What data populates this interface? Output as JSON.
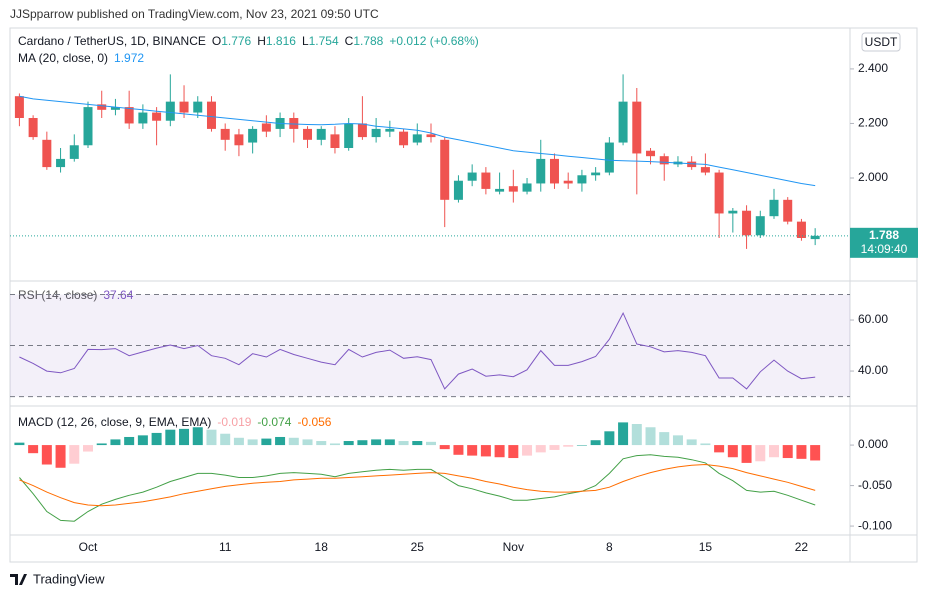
{
  "page": {
    "publisher": "JJSpparrow published on TradingView.com, Nov 23, 2021 09:50 UTC",
    "brand": "TradingView"
  },
  "chart_data": [
    {
      "type": "candlestick",
      "title": "Cardano / TetherUS, 1D, BINANCE",
      "ohlc_labels": [
        "O",
        "H",
        "L",
        "C"
      ],
      "change": "+0.012 (+0.68%)",
      "currency": "USDT",
      "countdown": "14:09:40",
      "categories": [
        null,
        null,
        null,
        null,
        null,
        "Oct",
        null,
        null,
        null,
        null,
        null,
        null,
        null,
        null,
        null,
        "11",
        null,
        null,
        null,
        null,
        null,
        null,
        "18",
        null,
        null,
        null,
        null,
        null,
        null,
        "25",
        null,
        null,
        null,
        null,
        null,
        null,
        "Nov",
        null,
        null,
        null,
        null,
        null,
        null,
        "8",
        null,
        null,
        null,
        null,
        null,
        null,
        "15",
        null,
        null,
        null,
        null,
        null,
        null,
        "22",
        null
      ],
      "open": [
        2.3,
        2.22,
        2.14,
        2.04,
        2.07,
        2.12,
        2.27,
        2.25,
        2.26,
        2.2,
        2.24,
        2.21,
        2.28,
        2.24,
        2.28,
        2.18,
        2.16,
        2.13,
        2.2,
        2.18,
        2.22,
        2.18,
        2.14,
        2.16,
        2.11,
        2.2,
        2.15,
        2.17,
        2.17,
        2.13,
        2.16,
        2.14,
        1.92,
        1.99,
        2.02,
        1.95,
        1.97,
        1.95,
        1.98,
        2.07,
        1.99,
        1.98,
        2.01,
        2.02,
        2.13,
        2.28,
        2.1,
        2.08,
        2.05,
        2.06,
        2.04,
        2.02,
        1.87,
        1.88,
        1.79,
        1.86,
        1.92,
        1.84,
        1.776
      ],
      "high": [
        2.31,
        2.23,
        2.17,
        2.11,
        2.16,
        2.28,
        2.32,
        2.29,
        2.32,
        2.27,
        2.26,
        2.38,
        2.34,
        2.3,
        2.3,
        2.2,
        2.18,
        2.19,
        2.23,
        2.24,
        2.24,
        2.19,
        2.19,
        2.19,
        2.22,
        2.3,
        2.22,
        2.21,
        2.18,
        2.2,
        2.2,
        2.15,
        2.01,
        2.05,
        2.04,
        2.02,
        2.03,
        2.0,
        2.14,
        2.09,
        2.02,
        2.03,
        2.04,
        2.15,
        2.38,
        2.33,
        2.11,
        2.09,
        2.08,
        2.08,
        2.09,
        2.03,
        1.89,
        1.9,
        1.88,
        1.96,
        1.93,
        1.85,
        1.816
      ],
      "low": [
        2.19,
        2.14,
        2.03,
        2.02,
        2.06,
        2.11,
        2.22,
        2.23,
        2.18,
        2.18,
        2.12,
        2.19,
        2.22,
        2.22,
        2.17,
        2.1,
        2.08,
        2.09,
        2.15,
        2.15,
        2.13,
        2.11,
        2.12,
        2.09,
        2.1,
        2.14,
        2.13,
        2.15,
        2.11,
        2.12,
        2.13,
        1.82,
        1.91,
        1.97,
        1.94,
        1.94,
        1.91,
        1.94,
        1.95,
        1.96,
        1.96,
        1.95,
        1.99,
        2.01,
        2.12,
        1.94,
        2.05,
        1.99,
        2.04,
        2.03,
        2.01,
        1.78,
        1.8,
        1.74,
        1.78,
        1.85,
        1.83,
        1.77,
        1.754
      ],
      "close": [
        2.22,
        2.15,
        2.04,
        2.07,
        2.12,
        2.26,
        2.25,
        2.26,
        2.2,
        2.24,
        2.21,
        2.28,
        2.24,
        2.28,
        2.18,
        2.14,
        2.12,
        2.18,
        2.17,
        2.22,
        2.18,
        2.14,
        2.18,
        2.11,
        2.2,
        2.15,
        2.18,
        2.18,
        2.12,
        2.16,
        2.15,
        1.92,
        1.99,
        2.02,
        1.96,
        1.96,
        1.95,
        1.98,
        2.07,
        1.98,
        1.98,
        2.01,
        2.02,
        2.13,
        2.28,
        2.09,
        2.08,
        2.05,
        2.06,
        2.04,
        2.02,
        1.87,
        1.88,
        1.79,
        1.86,
        1.92,
        1.84,
        1.78,
        1.788
      ],
      "up_color": "#26a69a",
      "down_color": "#ef5350",
      "ylim": [
        1.626,
        2.55
      ],
      "yticks": [
        {
          "value": 2.4,
          "label": "2.400"
        },
        {
          "value": 2.2,
          "label": "2.200"
        },
        {
          "value": 2.0,
          "label": "2.000"
        }
      ],
      "series": [
        {
          "name": "MA (20, close, 0)",
          "color": "#2196f3",
          "values": [
            2.3,
            2.29,
            2.285,
            2.28,
            2.275,
            2.27,
            2.265,
            2.26,
            2.255,
            2.25,
            2.245,
            2.24,
            2.235,
            2.23,
            2.225,
            2.22,
            2.215,
            2.21,
            2.205,
            2.2,
            2.198,
            2.196,
            2.195,
            2.197,
            2.2,
            2.198,
            2.19,
            2.185,
            2.18,
            2.175,
            2.165,
            2.15,
            2.14,
            2.13,
            2.12,
            2.11,
            2.1,
            2.095,
            2.09,
            2.085,
            2.08,
            2.075,
            2.07,
            2.065,
            2.063,
            2.062,
            2.06,
            2.058,
            2.055,
            2.052,
            2.05,
            2.04,
            2.03,
            2.02,
            2.01,
            2.0,
            1.99,
            1.98,
            1.972
          ]
        }
      ]
    },
    {
      "type": "line",
      "series": [
        {
          "name": "RSI (14, close)",
          "color": "#7e57c2",
          "values": [
            45.5,
            43,
            40,
            39.3,
            41,
            48.5,
            48.4,
            48.8,
            46,
            47.5,
            49,
            50.2,
            48.8,
            50,
            46,
            45,
            42.5,
            46.8,
            45.5,
            48.5,
            46.5,
            45,
            43.5,
            42.5,
            48.5,
            45.5,
            47.3,
            48.2,
            45,
            45.6,
            44.5,
            33,
            38.8,
            40.8,
            38,
            38.5,
            37.8,
            40.5,
            48,
            42.2,
            42.2,
            43.7,
            45.7,
            52.5,
            62.7,
            50.6,
            49.5,
            47.5,
            48,
            47.3,
            46,
            37.3,
            37.3,
            33,
            39.7,
            44.3,
            40,
            37,
            37.64
          ]
        }
      ],
      "bands": [
        70,
        50,
        30
      ],
      "band_color": "#7e57c2",
      "ylim": [
        26.7,
        74.9
      ],
      "yticks": [
        {
          "value": 60,
          "label": "60.00"
        },
        {
          "value": 40,
          "label": "40.00"
        }
      ]
    },
    {
      "type": "combo",
      "title": "MACD (12, 26, close, 9, EMA, EMA)",
      "series": [
        {
          "type": "bar",
          "color": "#f7a1a6",
          "colors": [
            "#26a69a",
            "#b2dfdb",
            "#ffcdd2",
            "#ff5252"
          ],
          "values": [
            0.003,
            -0.01,
            -0.024,
            -0.028,
            -0.023,
            -0.008,
            0.002,
            0.007,
            0.01,
            0.012,
            0.015,
            0.019,
            0.02,
            0.022,
            0.019,
            0.014,
            0.009,
            0.007,
            0.008,
            0.01,
            0.009,
            0.007,
            0.005,
            0.002,
            0.005,
            0.006,
            0.007,
            0.007,
            0.005,
            0.005,
            0.004,
            -0.005,
            -0.012,
            -0.013,
            -0.014,
            -0.015,
            -0.016,
            -0.013,
            -0.009,
            -0.006,
            -0.002,
            0.0,
            0.006,
            0.017,
            0.028,
            0.026,
            0.022,
            0.016,
            0.012,
            0.007,
            0.002,
            -0.009,
            -0.015,
            -0.022,
            -0.02,
            -0.015,
            -0.016,
            -0.017,
            -0.019
          ]
        },
        {
          "type": "line",
          "color": "#43a047",
          "values": [
            -0.04,
            -0.06,
            -0.082,
            -0.093,
            -0.094,
            -0.082,
            -0.073,
            -0.067,
            -0.062,
            -0.058,
            -0.052,
            -0.045,
            -0.04,
            -0.035,
            -0.035,
            -0.037,
            -0.04,
            -0.04,
            -0.038,
            -0.035,
            -0.034,
            -0.035,
            -0.036,
            -0.039,
            -0.035,
            -0.033,
            -0.031,
            -0.03,
            -0.031,
            -0.03,
            -0.03,
            -0.04,
            -0.05,
            -0.054,
            -0.059,
            -0.063,
            -0.068,
            -0.068,
            -0.066,
            -0.064,
            -0.06,
            -0.057,
            -0.05,
            -0.035,
            -0.017,
            -0.013,
            -0.012,
            -0.014,
            -0.015,
            -0.018,
            -0.022,
            -0.035,
            -0.044,
            -0.056,
            -0.058,
            -0.057,
            -0.062,
            -0.068,
            -0.074
          ]
        },
        {
          "type": "line",
          "color": "#ff6d00",
          "values": [
            -0.043,
            -0.05,
            -0.058,
            -0.065,
            -0.071,
            -0.074,
            -0.075,
            -0.074,
            -0.072,
            -0.07,
            -0.067,
            -0.064,
            -0.06,
            -0.057,
            -0.054,
            -0.051,
            -0.049,
            -0.047,
            -0.046,
            -0.045,
            -0.043,
            -0.042,
            -0.041,
            -0.041,
            -0.04,
            -0.039,
            -0.038,
            -0.037,
            -0.036,
            -0.035,
            -0.034,
            -0.035,
            -0.038,
            -0.041,
            -0.045,
            -0.048,
            -0.052,
            -0.055,
            -0.057,
            -0.058,
            -0.058,
            -0.057,
            -0.056,
            -0.052,
            -0.045,
            -0.039,
            -0.034,
            -0.03,
            -0.027,
            -0.025,
            -0.024,
            -0.026,
            -0.029,
            -0.034,
            -0.038,
            -0.042,
            -0.046,
            -0.051,
            -0.056
          ]
        }
      ],
      "ylim": [
        -0.111,
        0.047
      ],
      "yticks": [
        {
          "value": 0,
          "label": "0.000"
        },
        {
          "value": -0.05,
          "label": "-0.050"
        },
        {
          "value": -0.1,
          "label": "-0.100"
        }
      ]
    }
  ]
}
